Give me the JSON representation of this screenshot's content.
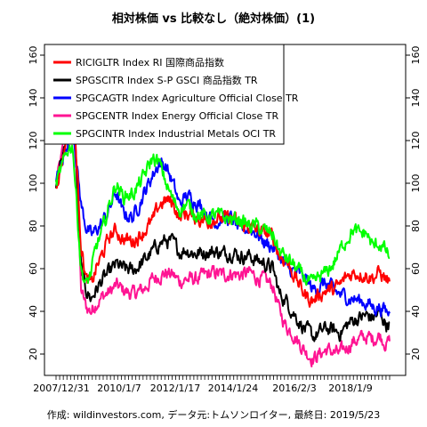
{
  "chart_data": {
    "type": "line",
    "title": "相対株価 vs 比較なし（絶対株価）(1)",
    "caption": "作成: wildinvestors.com, データ元:トムソンロイター, 最終日: 2019/5/23",
    "x_tick_labels": [
      "2007/12/31",
      "2010/1/7",
      "2012/1/17",
      "2014/1/24",
      "2016/2/3",
      "2018/1/9"
    ],
    "y_ticks": [
      20,
      40,
      60,
      80,
      100,
      120,
      140,
      160
    ],
    "ylim": [
      10,
      165
    ],
    "legend_position": "top-left",
    "grid": false,
    "series": [
      {
        "name": "RICIGLTR Index RI 国際商品指数",
        "color": "#ff0000",
        "values": [
          [
            0,
            100
          ],
          [
            0.02,
            112
          ],
          [
            0.035,
            125
          ],
          [
            0.05,
            138
          ],
          [
            0.06,
            115
          ],
          [
            0.075,
            72
          ],
          [
            0.09,
            55
          ],
          [
            0.105,
            52
          ],
          [
            0.12,
            60
          ],
          [
            0.14,
            67
          ],
          [
            0.16,
            75
          ],
          [
            0.18,
            78
          ],
          [
            0.2,
            74
          ],
          [
            0.23,
            73
          ],
          [
            0.26,
            77
          ],
          [
            0.29,
            82
          ],
          [
            0.31,
            90
          ],
          [
            0.33,
            92
          ],
          [
            0.35,
            91
          ],
          [
            0.37,
            84
          ],
          [
            0.39,
            86
          ],
          [
            0.42,
            84
          ],
          [
            0.45,
            82
          ],
          [
            0.48,
            84
          ],
          [
            0.5,
            83
          ],
          [
            0.53,
            84
          ],
          [
            0.55,
            80
          ],
          [
            0.58,
            80
          ],
          [
            0.6,
            78
          ],
          [
            0.62,
            77
          ],
          [
            0.65,
            75
          ],
          [
            0.67,
            66
          ],
          [
            0.69,
            64
          ],
          [
            0.71,
            58
          ],
          [
            0.73,
            52
          ],
          [
            0.75,
            47
          ],
          [
            0.77,
            45
          ],
          [
            0.79,
            48
          ],
          [
            0.81,
            50
          ],
          [
            0.83,
            50
          ],
          [
            0.85,
            52
          ],
          [
            0.87,
            56
          ],
          [
            0.89,
            58
          ],
          [
            0.91,
            58
          ],
          [
            0.93,
            57
          ],
          [
            0.95,
            56
          ],
          [
            0.97,
            58
          ],
          [
            0.99,
            55
          ],
          [
            1.0,
            54
          ]
        ]
      },
      {
        "name": "SPGSCITR Index S-P GSCI 商品指数 TR",
        "color": "#000000",
        "values": [
          [
            0,
            100
          ],
          [
            0.02,
            113
          ],
          [
            0.035,
            128
          ],
          [
            0.05,
            145
          ],
          [
            0.06,
            112
          ],
          [
            0.075,
            60
          ],
          [
            0.09,
            50
          ],
          [
            0.105,
            46
          ],
          [
            0.12,
            50
          ],
          [
            0.14,
            55
          ],
          [
            0.16,
            58
          ],
          [
            0.18,
            62
          ],
          [
            0.2,
            60
          ],
          [
            0.23,
            59
          ],
          [
            0.26,
            63
          ],
          [
            0.29,
            68
          ],
          [
            0.31,
            72
          ],
          [
            0.33,
            73
          ],
          [
            0.35,
            72
          ],
          [
            0.37,
            68
          ],
          [
            0.39,
            69
          ],
          [
            0.42,
            67
          ],
          [
            0.45,
            68
          ],
          [
            0.48,
            68
          ],
          [
            0.5,
            67
          ],
          [
            0.53,
            68
          ],
          [
            0.55,
            66
          ],
          [
            0.58,
            66
          ],
          [
            0.6,
            64
          ],
          [
            0.62,
            63
          ],
          [
            0.65,
            60
          ],
          [
            0.67,
            48
          ],
          [
            0.69,
            45
          ],
          [
            0.71,
            40
          ],
          [
            0.73,
            35
          ],
          [
            0.75,
            31
          ],
          [
            0.77,
            28
          ],
          [
            0.79,
            30
          ],
          [
            0.81,
            32
          ],
          [
            0.83,
            31
          ],
          [
            0.85,
            30
          ],
          [
            0.87,
            33
          ],
          [
            0.89,
            36
          ],
          [
            0.91,
            37
          ],
          [
            0.93,
            38
          ],
          [
            0.95,
            37
          ],
          [
            0.97,
            39
          ],
          [
            0.99,
            34
          ],
          [
            1.0,
            35
          ]
        ]
      },
      {
        "name": "SPGCAGTR Index Agriculture Official Close TR",
        "color": "#0000ff",
        "values": [
          [
            0,
            100
          ],
          [
            0.02,
            110
          ],
          [
            0.035,
            120
          ],
          [
            0.05,
            130
          ],
          [
            0.06,
            112
          ],
          [
            0.075,
            90
          ],
          [
            0.09,
            80
          ],
          [
            0.105,
            75
          ],
          [
            0.12,
            78
          ],
          [
            0.14,
            82
          ],
          [
            0.16,
            88
          ],
          [
            0.18,
            96
          ],
          [
            0.2,
            86
          ],
          [
            0.23,
            84
          ],
          [
            0.26,
            94
          ],
          [
            0.29,
            104
          ],
          [
            0.31,
            110
          ],
          [
            0.33,
            108
          ],
          [
            0.35,
            100
          ],
          [
            0.37,
            90
          ],
          [
            0.39,
            94
          ],
          [
            0.42,
            92
          ],
          [
            0.45,
            86
          ],
          [
            0.48,
            82
          ],
          [
            0.5,
            84
          ],
          [
            0.53,
            83
          ],
          [
            0.55,
            78
          ],
          [
            0.58,
            79
          ],
          [
            0.6,
            77
          ],
          [
            0.62,
            73
          ],
          [
            0.65,
            70
          ],
          [
            0.67,
            66
          ],
          [
            0.69,
            60
          ],
          [
            0.71,
            59
          ],
          [
            0.73,
            57
          ],
          [
            0.75,
            55
          ],
          [
            0.77,
            50
          ],
          [
            0.79,
            52
          ],
          [
            0.81,
            53
          ],
          [
            0.83,
            50
          ],
          [
            0.85,
            48
          ],
          [
            0.87,
            47
          ],
          [
            0.89,
            46
          ],
          [
            0.91,
            45
          ],
          [
            0.93,
            44
          ],
          [
            0.95,
            42
          ],
          [
            0.97,
            42
          ],
          [
            0.99,
            40
          ],
          [
            1.0,
            39
          ]
        ]
      },
      {
        "name": "SPGCENTR Index Energy Official Close TR",
        "color": "#ff1493",
        "values": [
          [
            0,
            100
          ],
          [
            0.02,
            115
          ],
          [
            0.035,
            135
          ],
          [
            0.05,
            160
          ],
          [
            0.06,
            110
          ],
          [
            0.075,
            50
          ],
          [
            0.09,
            42
          ],
          [
            0.105,
            40
          ],
          [
            0.12,
            44
          ],
          [
            0.14,
            47
          ],
          [
            0.16,
            49
          ],
          [
            0.18,
            52
          ],
          [
            0.2,
            50
          ],
          [
            0.23,
            48
          ],
          [
            0.26,
            50
          ],
          [
            0.29,
            55
          ],
          [
            0.31,
            57
          ],
          [
            0.33,
            58
          ],
          [
            0.35,
            57
          ],
          [
            0.37,
            54
          ],
          [
            0.39,
            55
          ],
          [
            0.42,
            55
          ],
          [
            0.45,
            57
          ],
          [
            0.48,
            58
          ],
          [
            0.5,
            57
          ],
          [
            0.53,
            58
          ],
          [
            0.55,
            57
          ],
          [
            0.58,
            58
          ],
          [
            0.6,
            56
          ],
          [
            0.62,
            55
          ],
          [
            0.65,
            52
          ],
          [
            0.67,
            40
          ],
          [
            0.69,
            33
          ],
          [
            0.71,
            30
          ],
          [
            0.73,
            25
          ],
          [
            0.75,
            21
          ],
          [
            0.77,
            18
          ],
          [
            0.79,
            20
          ],
          [
            0.81,
            22
          ],
          [
            0.83,
            21
          ],
          [
            0.85,
            20
          ],
          [
            0.87,
            23
          ],
          [
            0.89,
            26
          ],
          [
            0.91,
            27
          ],
          [
            0.93,
            28
          ],
          [
            0.95,
            27
          ],
          [
            0.97,
            29
          ],
          [
            0.99,
            25
          ],
          [
            1.0,
            26
          ]
        ]
      },
      {
        "name": "SPGCINTR Index Industrial Metals OCI TR",
        "color": "#00ff00",
        "values": [
          [
            0,
            100
          ],
          [
            0.02,
            108
          ],
          [
            0.035,
            116
          ],
          [
            0.05,
            118
          ],
          [
            0.06,
            95
          ],
          [
            0.075,
            60
          ],
          [
            0.09,
            52
          ],
          [
            0.105,
            58
          ],
          [
            0.12,
            70
          ],
          [
            0.14,
            78
          ],
          [
            0.16,
            90
          ],
          [
            0.18,
            100
          ],
          [
            0.2,
            94
          ],
          [
            0.23,
            95
          ],
          [
            0.26,
            102
          ],
          [
            0.29,
            112
          ],
          [
            0.31,
            109
          ],
          [
            0.33,
            100
          ],
          [
            0.35,
            92
          ],
          [
            0.37,
            88
          ],
          [
            0.39,
            90
          ],
          [
            0.42,
            86
          ],
          [
            0.45,
            84
          ],
          [
            0.48,
            85
          ],
          [
            0.5,
            84
          ],
          [
            0.53,
            83
          ],
          [
            0.55,
            83
          ],
          [
            0.58,
            80
          ],
          [
            0.6,
            80
          ],
          [
            0.62,
            78
          ],
          [
            0.65,
            76
          ],
          [
            0.67,
            68
          ],
          [
            0.69,
            65
          ],
          [
            0.71,
            62
          ],
          [
            0.73,
            58
          ],
          [
            0.75,
            55
          ],
          [
            0.77,
            52
          ],
          [
            0.79,
            56
          ],
          [
            0.81,
            58
          ],
          [
            0.83,
            62
          ],
          [
            0.85,
            68
          ],
          [
            0.87,
            74
          ],
          [
            0.89,
            78
          ],
          [
            0.91,
            76
          ],
          [
            0.93,
            77
          ],
          [
            0.95,
            70
          ],
          [
            0.97,
            72
          ],
          [
            0.99,
            68
          ],
          [
            1.0,
            65
          ]
        ]
      }
    ]
  }
}
